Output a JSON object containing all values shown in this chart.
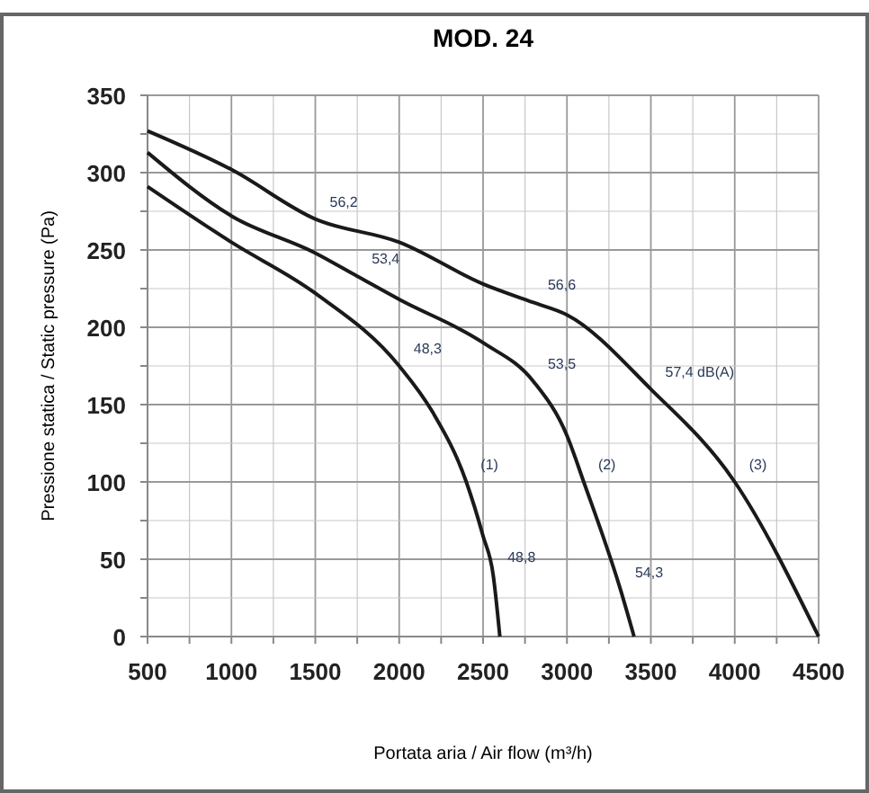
{
  "chart_data": {
    "type": "line",
    "title": "MOD. 24",
    "xlabel": "Portata aria / Air flow (m³/h)",
    "ylabel": "Pressione statica / Static pressure (Pa)",
    "xlim": [
      500,
      4500
    ],
    "ylim": [
      0,
      350
    ],
    "xticks": [
      500,
      {
        "value": 750,
        "label": null
      },
      1000,
      {
        "value": 1250,
        "label": null
      },
      1500,
      {
        "value": 1750,
        "label": null
      },
      2000,
      {
        "value": 2250,
        "label": null
      },
      2500,
      {
        "value": 2750,
        "label": null
      },
      3000,
      {
        "value": 3250,
        "label": null
      },
      3500,
      {
        "value": 3750,
        "label": null
      },
      4000,
      {
        "value": 4250,
        "label": null
      },
      4500
    ],
    "yticks": [
      0,
      {
        "value": 25,
        "label": null
      },
      50,
      {
        "value": 75,
        "label": null
      },
      100,
      {
        "value": 125,
        "label": null
      },
      150,
      {
        "value": 175,
        "label": null
      },
      200,
      {
        "value": 225,
        "label": null
      },
      250,
      {
        "value": 275,
        "label": null
      },
      300,
      {
        "value": 325,
        "label": null
      },
      350
    ],
    "grid": true,
    "marker": "none",
    "line_style": "solid",
    "series": [
      {
        "color": "#1a1a1a",
        "x": [
          500,
          1000,
          1500,
          2000,
          2200,
          2400,
          2500,
          2560,
          2600
        ],
        "values": [
          291,
          255,
          222,
          175,
          145,
          100,
          65,
          40,
          0
        ]
      },
      {
        "color": "#1a1a1a",
        "x": [
          500,
          1000,
          1500,
          1750,
          2000,
          2500,
          2800,
          3000,
          3100,
          3320,
          3400
        ],
        "values": [
          313,
          272,
          248,
          233,
          218,
          190,
          165,
          130,
          100,
          30,
          0
        ]
      },
      {
        "color": "#1a1a1a",
        "x": [
          500,
          1000,
          1500,
          2000,
          2500,
          2800,
          3000,
          3500,
          4000,
          4500
        ],
        "values": [
          327,
          302,
          270,
          255,
          228,
          216,
          208,
          160,
          100,
          0
        ]
      }
    ],
    "annotations": [
      {
        "text": "56,2",
        "x": 1500,
        "y": 270
      },
      {
        "text": "53,4",
        "x": 1750,
        "y": 233
      },
      {
        "text": "56,6",
        "x": 2800,
        "y": 216
      },
      {
        "text": "48,3",
        "x": 2000,
        "y": 175
      },
      {
        "text": "53,5",
        "x": 2800,
        "y": 165
      },
      {
        "text": "57,4 dB(A)",
        "x": 3500,
        "y": 160
      },
      {
        "text": "(1)",
        "x": 2400,
        "y": 100
      },
      {
        "text": "(2)",
        "x": 3100,
        "y": 100
      },
      {
        "text": "(3)",
        "x": 4000,
        "y": 100
      },
      {
        "text": "48,8",
        "x": 2560,
        "y": 40
      },
      {
        "text": "54,3",
        "x": 3320,
        "y": 30
      }
    ]
  }
}
